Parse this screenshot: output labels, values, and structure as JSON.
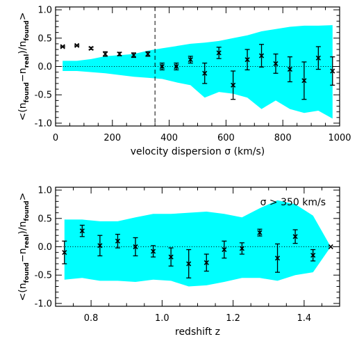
{
  "chart_data": [
    {
      "type": "scatter",
      "title": "",
      "xlabel": "velocity dispersion σ (km/s)",
      "ylabel": "<(n_found−n_real)/n_found>",
      "xlim": [
        0,
        1000
      ],
      "ylim": [
        -1.05,
        1.05
      ],
      "xticks": [
        0,
        200,
        400,
        600,
        800,
        1000
      ],
      "yticks": [
        -1.0,
        -0.5,
        0.0,
        0.5,
        1.0
      ],
      "xtick_labels": [
        "0",
        "200",
        "400",
        "600",
        "800",
        "1000"
      ],
      "ytick_labels": [
        "-1.0",
        "-0.5",
        "0.0",
        "0.5",
        "1.0"
      ],
      "reference_line_y": 0.0,
      "vertical_line_x": 350,
      "band_color": "#00ffff",
      "band": {
        "x": [
          25,
          75,
          125,
          175,
          225,
          275,
          325,
          375,
          425,
          475,
          525,
          575,
          625,
          675,
          725,
          775,
          825,
          875,
          925,
          975
        ],
        "upper": [
          0.1,
          0.1,
          0.13,
          0.18,
          0.2,
          0.22,
          0.28,
          0.32,
          0.36,
          0.4,
          0.42,
          0.45,
          0.5,
          0.55,
          0.62,
          0.66,
          0.7,
          0.72,
          0.72,
          0.73
        ],
        "lower": [
          -0.08,
          -0.08,
          -0.1,
          -0.12,
          -0.15,
          -0.18,
          -0.2,
          -0.22,
          -0.28,
          -0.33,
          -0.55,
          -0.45,
          -0.48,
          -0.55,
          -0.75,
          -0.6,
          -0.75,
          -0.82,
          -0.78,
          -0.92
        ]
      },
      "series": [
        {
          "x": [
            25,
            75,
            125,
            175,
            225,
            275,
            325,
            375,
            425,
            475,
            525,
            575,
            625,
            675,
            725,
            775,
            825,
            875,
            925,
            975
          ],
          "y": [
            0.35,
            0.37,
            0.32,
            0.22,
            0.22,
            0.2,
            0.22,
            0.0,
            0.0,
            0.12,
            -0.12,
            0.24,
            -0.33,
            0.12,
            0.19,
            0.05,
            -0.05,
            -0.25,
            0.15,
            -0.08
          ],
          "yerr": [
            0.01,
            0.01,
            0.02,
            0.04,
            0.03,
            0.04,
            0.04,
            0.06,
            0.06,
            0.06,
            0.18,
            0.1,
            0.25,
            0.18,
            0.2,
            0.17,
            0.22,
            0.33,
            0.2,
            0.25
          ]
        }
      ]
    },
    {
      "type": "scatter",
      "title": "",
      "xlabel": "redshift z",
      "ylabel": "<(n_found−n_real)/n_found>",
      "annotation": "σ > 350 km/s",
      "xlim": [
        0.7,
        1.5
      ],
      "ylim": [
        -1.05,
        1.05
      ],
      "xticks": [
        0.8,
        1.0,
        1.2,
        1.4
      ],
      "yticks": [
        -1.0,
        -0.5,
        0.0,
        0.5,
        1.0
      ],
      "xtick_labels": [
        "0.8",
        "1.0",
        "1.2",
        "1.4"
      ],
      "ytick_labels": [
        "-1.0",
        "-0.5",
        "0.0",
        "0.5",
        "1.0"
      ],
      "reference_line_y": 0.0,
      "band_color": "#00ffff",
      "band": {
        "x": [
          0.725,
          0.775,
          0.825,
          0.875,
          0.925,
          0.975,
          1.025,
          1.075,
          1.125,
          1.175,
          1.225,
          1.275,
          1.325,
          1.375,
          1.425,
          1.475
        ],
        "upper": [
          0.48,
          0.48,
          0.45,
          0.45,
          0.52,
          0.58,
          0.58,
          0.6,
          0.62,
          0.58,
          0.52,
          0.68,
          0.82,
          0.75,
          0.55,
          0.0
        ],
        "lower": [
          -0.58,
          -0.55,
          -0.6,
          -0.6,
          -0.62,
          -0.58,
          -0.6,
          -0.7,
          -0.68,
          -0.62,
          -0.55,
          -0.55,
          -0.6,
          -0.5,
          -0.45,
          0.0
        ]
      },
      "series": [
        {
          "x": [
            0.725,
            0.775,
            0.825,
            0.875,
            0.925,
            0.975,
            1.025,
            1.075,
            1.125,
            1.175,
            1.225,
            1.275,
            1.325,
            1.375,
            1.425,
            1.475
          ],
          "y": [
            -0.1,
            0.28,
            0.02,
            0.1,
            0.0,
            -0.08,
            -0.18,
            -0.3,
            -0.28,
            -0.05,
            -0.03,
            0.25,
            -0.2,
            0.18,
            -0.15,
            0.0
          ],
          "yerr": [
            0.2,
            0.1,
            0.18,
            0.12,
            0.16,
            0.1,
            0.16,
            0.25,
            0.15,
            0.15,
            0.1,
            0.06,
            0.25,
            0.12,
            0.1,
            0.0
          ]
        }
      ]
    }
  ]
}
